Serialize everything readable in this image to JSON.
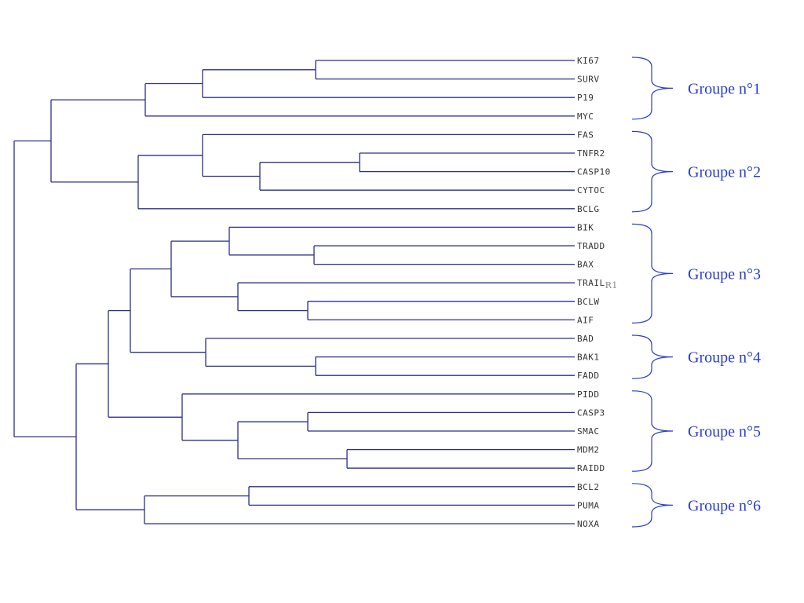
{
  "colors": {
    "tree": "#2a2f8c",
    "brace": "#2a3fc8",
    "group_text": "#2a3fc8",
    "leaf_text": "#333333"
  },
  "leaves": [
    {
      "id": "KI67",
      "label": "KI67"
    },
    {
      "id": "SURV",
      "label": "SURV"
    },
    {
      "id": "P19",
      "label": "P19"
    },
    {
      "id": "MYC",
      "label": "MYC"
    },
    {
      "id": "FAS",
      "label": "FAS"
    },
    {
      "id": "TNFR2",
      "label": "TNFR2"
    },
    {
      "id": "CASP10",
      "label": "CASP10"
    },
    {
      "id": "CYTOC",
      "label": "CYTOC"
    },
    {
      "id": "BCLG",
      "label": "BCLG"
    },
    {
      "id": "BIK",
      "label": "BIK"
    },
    {
      "id": "TRADD",
      "label": "TRADD"
    },
    {
      "id": "BAX",
      "label": "BAX"
    },
    {
      "id": "TRAILR1",
      "label": "TRAIL",
      "suffix": "R1"
    },
    {
      "id": "BCLW",
      "label": "BCLW"
    },
    {
      "id": "AIF",
      "label": "AIF"
    },
    {
      "id": "BAD",
      "label": "BAD"
    },
    {
      "id": "BAK1",
      "label": "BAK1"
    },
    {
      "id": "FADD",
      "label": "FADD"
    },
    {
      "id": "PIDD",
      "label": "PIDD"
    },
    {
      "id": "CASP3",
      "label": "CASP3"
    },
    {
      "id": "SMAC",
      "label": "SMAC"
    },
    {
      "id": "MDM2",
      "label": "MDM2"
    },
    {
      "id": "RAIDD",
      "label": "RAIDD"
    },
    {
      "id": "BCL2",
      "label": "BCL2"
    },
    {
      "id": "PUMA",
      "label": "PUMA"
    },
    {
      "id": "NOXA",
      "label": "NOXA"
    }
  ],
  "groups": [
    {
      "label": "Groupe n°1",
      "first": 0,
      "last": 3
    },
    {
      "label": "Groupe n°2",
      "first": 4,
      "last": 8
    },
    {
      "label": "Groupe n°3",
      "first": 9,
      "last": 14
    },
    {
      "label": "Groupe n°4",
      "first": 15,
      "last": 17
    },
    {
      "label": "Groupe n°5",
      "first": 18,
      "last": 22
    },
    {
      "label": "Groupe n°6",
      "first": 23,
      "last": 25
    }
  ]
}
